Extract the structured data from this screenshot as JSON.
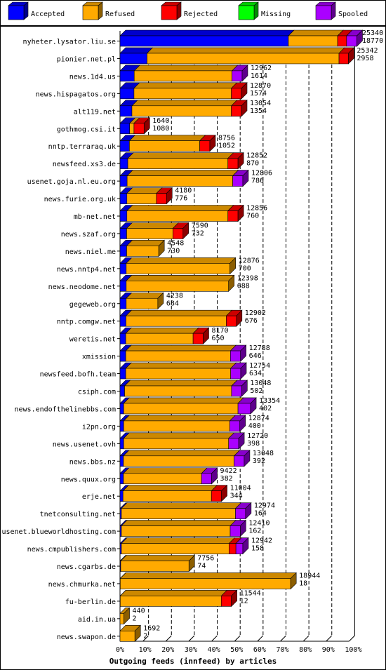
{
  "chart_data": {
    "type": "bar",
    "orientation": "horizontal",
    "stacked": true,
    "title": "Outgoing feeds (innfeed) by articles",
    "x_unit": "percent",
    "xlim": [
      0,
      100
    ],
    "x_ticks": [
      "0%",
      "10%",
      "20%",
      "30%",
      "40%",
      "50%",
      "60%",
      "70%",
      "80%",
      "90%",
      "100%"
    ],
    "grid": true,
    "legend_position": "top",
    "legend": [
      {
        "name": "Accepted",
        "color": "#0000ff"
      },
      {
        "name": "Refused",
        "color": "#ffaa00"
      },
      {
        "name": "Rejected",
        "color": "#ff0000"
      },
      {
        "name": "Missing",
        "color": "#00ff00"
      },
      {
        "name": "Spooled",
        "color": "#aa00ff"
      }
    ],
    "categories": [
      "nyheter.lysator.liu.se",
      "pionier.net.pl",
      "news.1d4.us",
      "news.hispagatos.org",
      "alt119.net",
      "gothmog.csi.it",
      "nntp.terraraq.uk",
      "newsfeed.xs3.de",
      "usenet.goja.nl.eu.org",
      "news.furie.org.uk",
      "mb-net.net",
      "news.szaf.org",
      "news.niel.me",
      "news.nntp4.net",
      "news.neodome.net",
      "gegeweb.org",
      "nntp.comgw.net",
      "weretis.net",
      "xmission",
      "newsfeed.bofh.team",
      "csiph.com",
      "news.endofthelinebbs.com",
      "i2pn.org",
      "news.usenet.ovh",
      "news.bbs.nz",
      "news.quux.org",
      "erje.net",
      "tnetconsulting.net",
      "usenet.blueworldhosting.com",
      "news.cmpublishers.com",
      "news.cgarbs.de",
      "news.chmurka.net",
      "fu-berlin.de",
      "aid.in.ua",
      "news.swapon.de"
    ],
    "offered": [
      "25340",
      "25342",
      "12962",
      "12870",
      "13054",
      "1640",
      "8756",
      "12852",
      "12806",
      "4180",
      "12856",
      "7590",
      "4548",
      "12876",
      "12398",
      "4238",
      "12902",
      "8170",
      "12788",
      "12754",
      "13048",
      "13354",
      "12874",
      "12720",
      "13048",
      "9422",
      "11004",
      "12974",
      "12410",
      "12942",
      "7756",
      "18944",
      "11544",
      "440",
      "1692"
    ],
    "accepted": [
      "18770",
      "2958",
      "1614",
      "1574",
      "1354",
      "1080",
      "1052",
      "870",
      "786",
      "776",
      "760",
      "732",
      "730",
      "700",
      "688",
      "684",
      "676",
      "650",
      "646",
      "634",
      "502",
      "402",
      "400",
      "398",
      "392",
      "382",
      "344",
      "164",
      "162",
      "158",
      "74",
      "18",
      "12",
      "2",
      "2"
    ],
    "series": [
      {
        "name": "Accepted",
        "values": [
          73.5,
          11.8,
          6.2,
          6.1,
          5.2,
          4.2,
          4.1,
          3.4,
          3.1,
          3.0,
          3.0,
          2.9,
          2.9,
          2.7,
          2.7,
          2.7,
          2.6,
          2.5,
          2.5,
          2.5,
          2.0,
          1.6,
          1.6,
          1.6,
          1.5,
          1.5,
          1.3,
          0.6,
          0.6,
          0.6,
          0.3,
          0.1,
          0.1,
          0.0,
          0.0
        ]
      },
      {
        "name": "Refused",
        "values": [
          21.5,
          83.8,
          42.7,
          42.5,
          43.4,
          1.9,
          30.7,
          43.7,
          46.1,
          12.9,
          44.1,
          20.2,
          14.0,
          45.3,
          44.7,
          13.8,
          43.8,
          29.4,
          45.7,
          45.8,
          46.7,
          49.9,
          46.3,
          45.8,
          48.3,
          34.1,
          38.6,
          49.8,
          47.5,
          47.0,
          29.8,
          74.4,
          44.1,
          1.7,
          6.5
        ]
      },
      {
        "name": "Rejected",
        "values": [
          3.9,
          4.1,
          0.0,
          4.4,
          4.4,
          4.4,
          4.4,
          4.4,
          0.0,
          4.4,
          4.4,
          4.4,
          0.0,
          0.0,
          0.0,
          0.0,
          4.4,
          4.4,
          0.0,
          0.0,
          0.0,
          0.0,
          0.0,
          0.0,
          0.0,
          0.0,
          4.4,
          0.0,
          0.0,
          3.0,
          0.0,
          0.0,
          4.4,
          0.0,
          0.0
        ]
      },
      {
        "name": "Missing",
        "values": [
          0,
          0,
          0,
          0,
          0,
          0,
          0,
          0,
          0,
          0,
          0,
          0,
          0,
          0,
          0,
          0,
          0,
          0,
          0,
          0,
          0,
          0,
          0,
          0,
          0,
          0,
          0,
          0,
          0,
          0,
          0,
          0,
          0,
          0,
          0
        ]
      },
      {
        "name": "Spooled",
        "values": [
          4.5,
          0.0,
          4.4,
          0.0,
          0.0,
          0.0,
          0.0,
          0.0,
          4.4,
          0.0,
          0.0,
          0.0,
          0.0,
          0.0,
          0.0,
          0.0,
          0.0,
          0.0,
          4.4,
          4.4,
          4.4,
          5.5,
          4.4,
          4.4,
          4.4,
          4.4,
          0.0,
          4.4,
          4.4,
          3.0,
          0.0,
          0.0,
          0.0,
          0.0,
          0.0
        ]
      }
    ]
  }
}
